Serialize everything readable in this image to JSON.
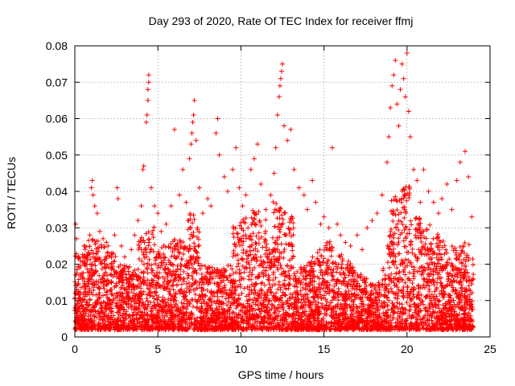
{
  "chart_data": {
    "type": "scatter",
    "title": "Day 293 of 2020, Rate Of TEC Index for receiver ffmj",
    "xlabel": "GPS time / hours",
    "ylabel": "ROTI / TECUs",
    "xlim": [
      0,
      25
    ],
    "ylim": [
      0,
      0.08
    ],
    "x_ticks": [
      0,
      5,
      10,
      15,
      20,
      25
    ],
    "x_tick_labels": [
      "0",
      "5",
      "10",
      "15",
      "20",
      "25"
    ],
    "y_ticks": [
      0,
      0.01,
      0.02,
      0.03,
      0.04,
      0.05,
      0.06,
      0.07,
      0.08
    ],
    "y_tick_labels": [
      "0",
      "0.01",
      "0.02",
      "0.03",
      "0.04",
      "0.05",
      "0.06",
      "0.07",
      "0.08"
    ],
    "grid": true,
    "legend": "none",
    "marker": "plus",
    "color": "#ff0000",
    "series": [
      {
        "values_note_x": "hours",
        "points": [
          [
            0.05,
            0.031
          ],
          [
            0.1,
            0.027
          ],
          [
            0.2,
            0.022
          ],
          [
            0.3,
            0.019
          ],
          [
            0.45,
            0.016
          ],
          [
            0.6,
            0.014
          ],
          [
            0.75,
            0.021
          ],
          [
            0.9,
            0.028
          ],
          [
            1.0,
            0.041
          ],
          [
            1.05,
            0.043
          ],
          [
            1.1,
            0.039
          ],
          [
            1.2,
            0.036
          ],
          [
            1.35,
            0.034
          ],
          [
            1.5,
            0.029
          ],
          [
            1.7,
            0.027
          ],
          [
            1.9,
            0.026
          ],
          [
            2.0,
            0.025
          ],
          [
            2.2,
            0.023
          ],
          [
            2.4,
            0.028
          ],
          [
            2.55,
            0.041
          ],
          [
            2.6,
            0.038
          ],
          [
            2.8,
            0.025
          ],
          [
            3.0,
            0.022
          ],
          [
            3.2,
            0.019
          ],
          [
            3.4,
            0.024
          ],
          [
            3.6,
            0.028
          ],
          [
            3.8,
            0.032
          ],
          [
            4.0,
            0.036
          ],
          [
            4.1,
            0.046
          ],
          [
            4.15,
            0.047
          ],
          [
            4.3,
            0.059
          ],
          [
            4.35,
            0.061
          ],
          [
            4.4,
            0.065
          ],
          [
            4.4,
            0.068
          ],
          [
            4.45,
            0.07
          ],
          [
            4.45,
            0.072
          ],
          [
            4.6,
            0.041
          ],
          [
            4.8,
            0.036
          ],
          [
            5.0,
            0.034
          ],
          [
            5.2,
            0.029
          ],
          [
            5.5,
            0.031
          ],
          [
            5.8,
            0.036
          ],
          [
            6.0,
            0.057
          ],
          [
            6.3,
            0.039
          ],
          [
            6.5,
            0.046
          ],
          [
            6.7,
            0.037
          ],
          [
            6.9,
            0.049
          ],
          [
            7.0,
            0.053
          ],
          [
            7.05,
            0.056
          ],
          [
            7.1,
            0.059
          ],
          [
            7.15,
            0.061
          ],
          [
            7.2,
            0.065
          ],
          [
            7.3,
            0.054
          ],
          [
            7.5,
            0.041
          ],
          [
            7.7,
            0.034
          ],
          [
            8.0,
            0.038
          ],
          [
            8.2,
            0.036
          ],
          [
            8.5,
            0.056
          ],
          [
            8.6,
            0.06
          ],
          [
            8.7,
            0.05
          ],
          [
            9.0,
            0.044
          ],
          [
            9.2,
            0.04
          ],
          [
            9.5,
            0.046
          ],
          [
            9.7,
            0.052
          ],
          [
            9.9,
            0.041
          ],
          [
            10.1,
            0.036
          ],
          [
            10.3,
            0.039
          ],
          [
            10.6,
            0.046
          ],
          [
            10.8,
            0.049
          ],
          [
            11.0,
            0.053
          ],
          [
            11.2,
            0.042
          ],
          [
            11.5,
            0.035
          ],
          [
            11.8,
            0.039
          ],
          [
            12.0,
            0.045
          ],
          [
            12.1,
            0.052
          ],
          [
            12.2,
            0.061
          ],
          [
            12.3,
            0.066
          ],
          [
            12.35,
            0.069
          ],
          [
            12.4,
            0.071
          ],
          [
            12.45,
            0.073
          ],
          [
            12.5,
            0.075
          ],
          [
            12.6,
            0.058
          ],
          [
            12.8,
            0.054
          ],
          [
            13.0,
            0.057
          ],
          [
            13.2,
            0.046
          ],
          [
            13.5,
            0.041
          ],
          [
            13.8,
            0.039
          ],
          [
            14.0,
            0.035
          ],
          [
            14.3,
            0.043
          ],
          [
            14.5,
            0.037
          ],
          [
            14.8,
            0.031
          ],
          [
            15.0,
            0.033
          ],
          [
            15.3,
            0.03
          ],
          [
            15.5,
            0.052
          ],
          [
            15.8,
            0.031
          ],
          [
            16.0,
            0.028
          ],
          [
            16.3,
            0.026
          ],
          [
            16.6,
            0.025
          ],
          [
            17.0,
            0.028
          ],
          [
            17.3,
            0.024
          ],
          [
            17.6,
            0.03
          ],
          [
            17.9,
            0.032
          ],
          [
            18.2,
            0.034
          ],
          [
            18.5,
            0.039
          ],
          [
            18.8,
            0.048
          ],
          [
            18.9,
            0.055
          ],
          [
            19.0,
            0.063
          ],
          [
            19.1,
            0.069
          ],
          [
            19.2,
            0.072
          ],
          [
            19.3,
            0.076
          ],
          [
            19.4,
            0.064
          ],
          [
            19.5,
            0.058
          ],
          [
            19.6,
            0.068
          ],
          [
            19.7,
            0.075
          ],
          [
            19.8,
            0.071
          ],
          [
            19.9,
            0.066
          ],
          [
            20.0,
            0.078
          ],
          [
            20.1,
            0.062
          ],
          [
            20.2,
            0.055
          ],
          [
            20.4,
            0.046
          ],
          [
            20.6,
            0.043
          ],
          [
            20.8,
            0.037
          ],
          [
            21.0,
            0.046
          ],
          [
            21.3,
            0.04
          ],
          [
            21.6,
            0.037
          ],
          [
            21.9,
            0.034
          ],
          [
            22.1,
            0.038
          ],
          [
            22.4,
            0.042
          ],
          [
            22.7,
            0.035
          ],
          [
            23.0,
            0.043
          ],
          [
            23.2,
            0.048
          ],
          [
            23.5,
            0.051
          ],
          [
            23.7,
            0.044
          ],
          [
            23.9,
            0.033
          ]
        ]
      }
    ]
  }
}
